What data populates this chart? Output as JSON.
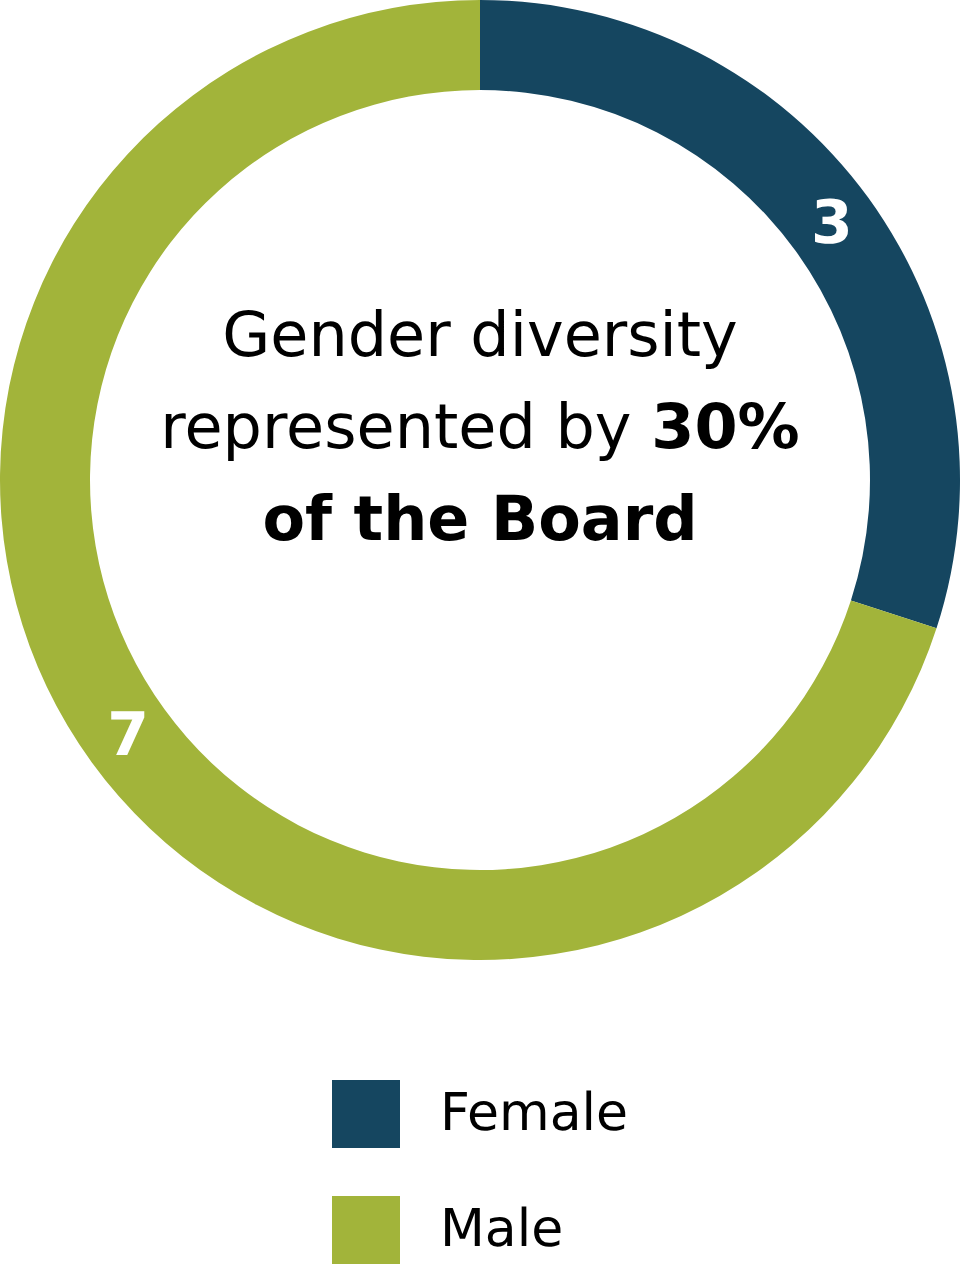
{
  "chart_data": {
    "type": "donut",
    "categories": [
      "Female",
      "Male"
    ],
    "values": [
      3,
      7
    ],
    "colors": [
      "#154660",
      "#a2b43a"
    ],
    "data_labels": true,
    "legend": "bottom",
    "annotations": [
      "Gender diversity represented by",
      "30% of the Board"
    ]
  }
}
